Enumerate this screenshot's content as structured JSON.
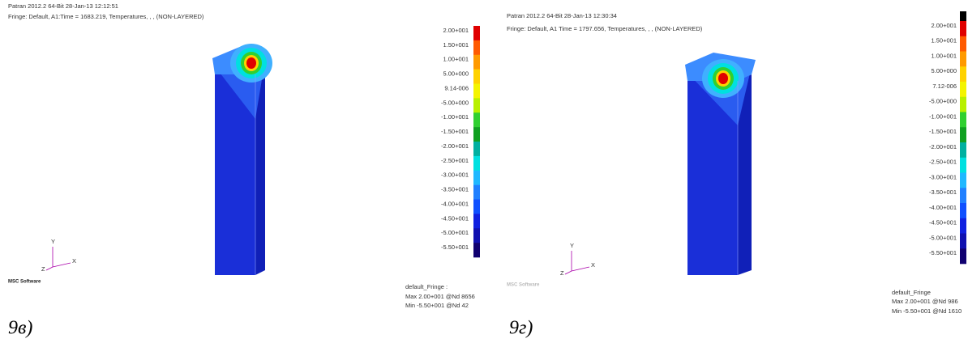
{
  "panels": [
    {
      "header": [
        "Patran 2012.2 64-Bit 28-Jan-13 12:12:51",
        "Fringe: Default, A1:Time = 1683.219, Temperatures, , , (NON-LAYERED)"
      ],
      "legend": [
        "2.00+001",
        "1.50+001",
        "1.00+001",
        "5.00+000",
        "9.14-006",
        "-5.00+000",
        "-1.00+001",
        "-1.50+001",
        "-2.00+001",
        "-2.50+001",
        "-3.00+001",
        "-3.50+001",
        "-4.00+001",
        "-4.50+001",
        "-5.00+001",
        "-5.50+001"
      ],
      "footer": [
        "default_Fringe :",
        "Max 2.00+001 @Nd 8656",
        "Min -5.50+001 @Nd 42"
      ],
      "axis": [
        "Y",
        "Z",
        "X"
      ],
      "logo": "MSC Software",
      "caption": "9в)"
    },
    {
      "header": [
        "Patran 2012.2 64-Bit 28-Jan-13 12:30:34",
        "Fringe: Default, A1 Time = 1797.656, Temperatures, , , (NON-LAYERED)"
      ],
      "legend": [
        "2.00+001",
        "1.50+001",
        "1.00+001",
        "5.00+000",
        "7.12-006",
        "-5.00+000",
        "-1.00+001",
        "-1.50+001",
        "-2.00+001",
        "-2.50+001",
        "-3.00+001",
        "-3.50+001",
        "-4.00+001",
        "-4.50+001",
        "-5.00+001",
        "-5.50+001"
      ],
      "footer": [
        "default_Fringe",
        "Max 2.00+001 @Nd 986",
        "Min -5.50+001 @Nd 1610"
      ],
      "axis": [
        "Y",
        "Z",
        "X"
      ],
      "logo": "MSC Software",
      "caption": "9г)"
    }
  ]
}
